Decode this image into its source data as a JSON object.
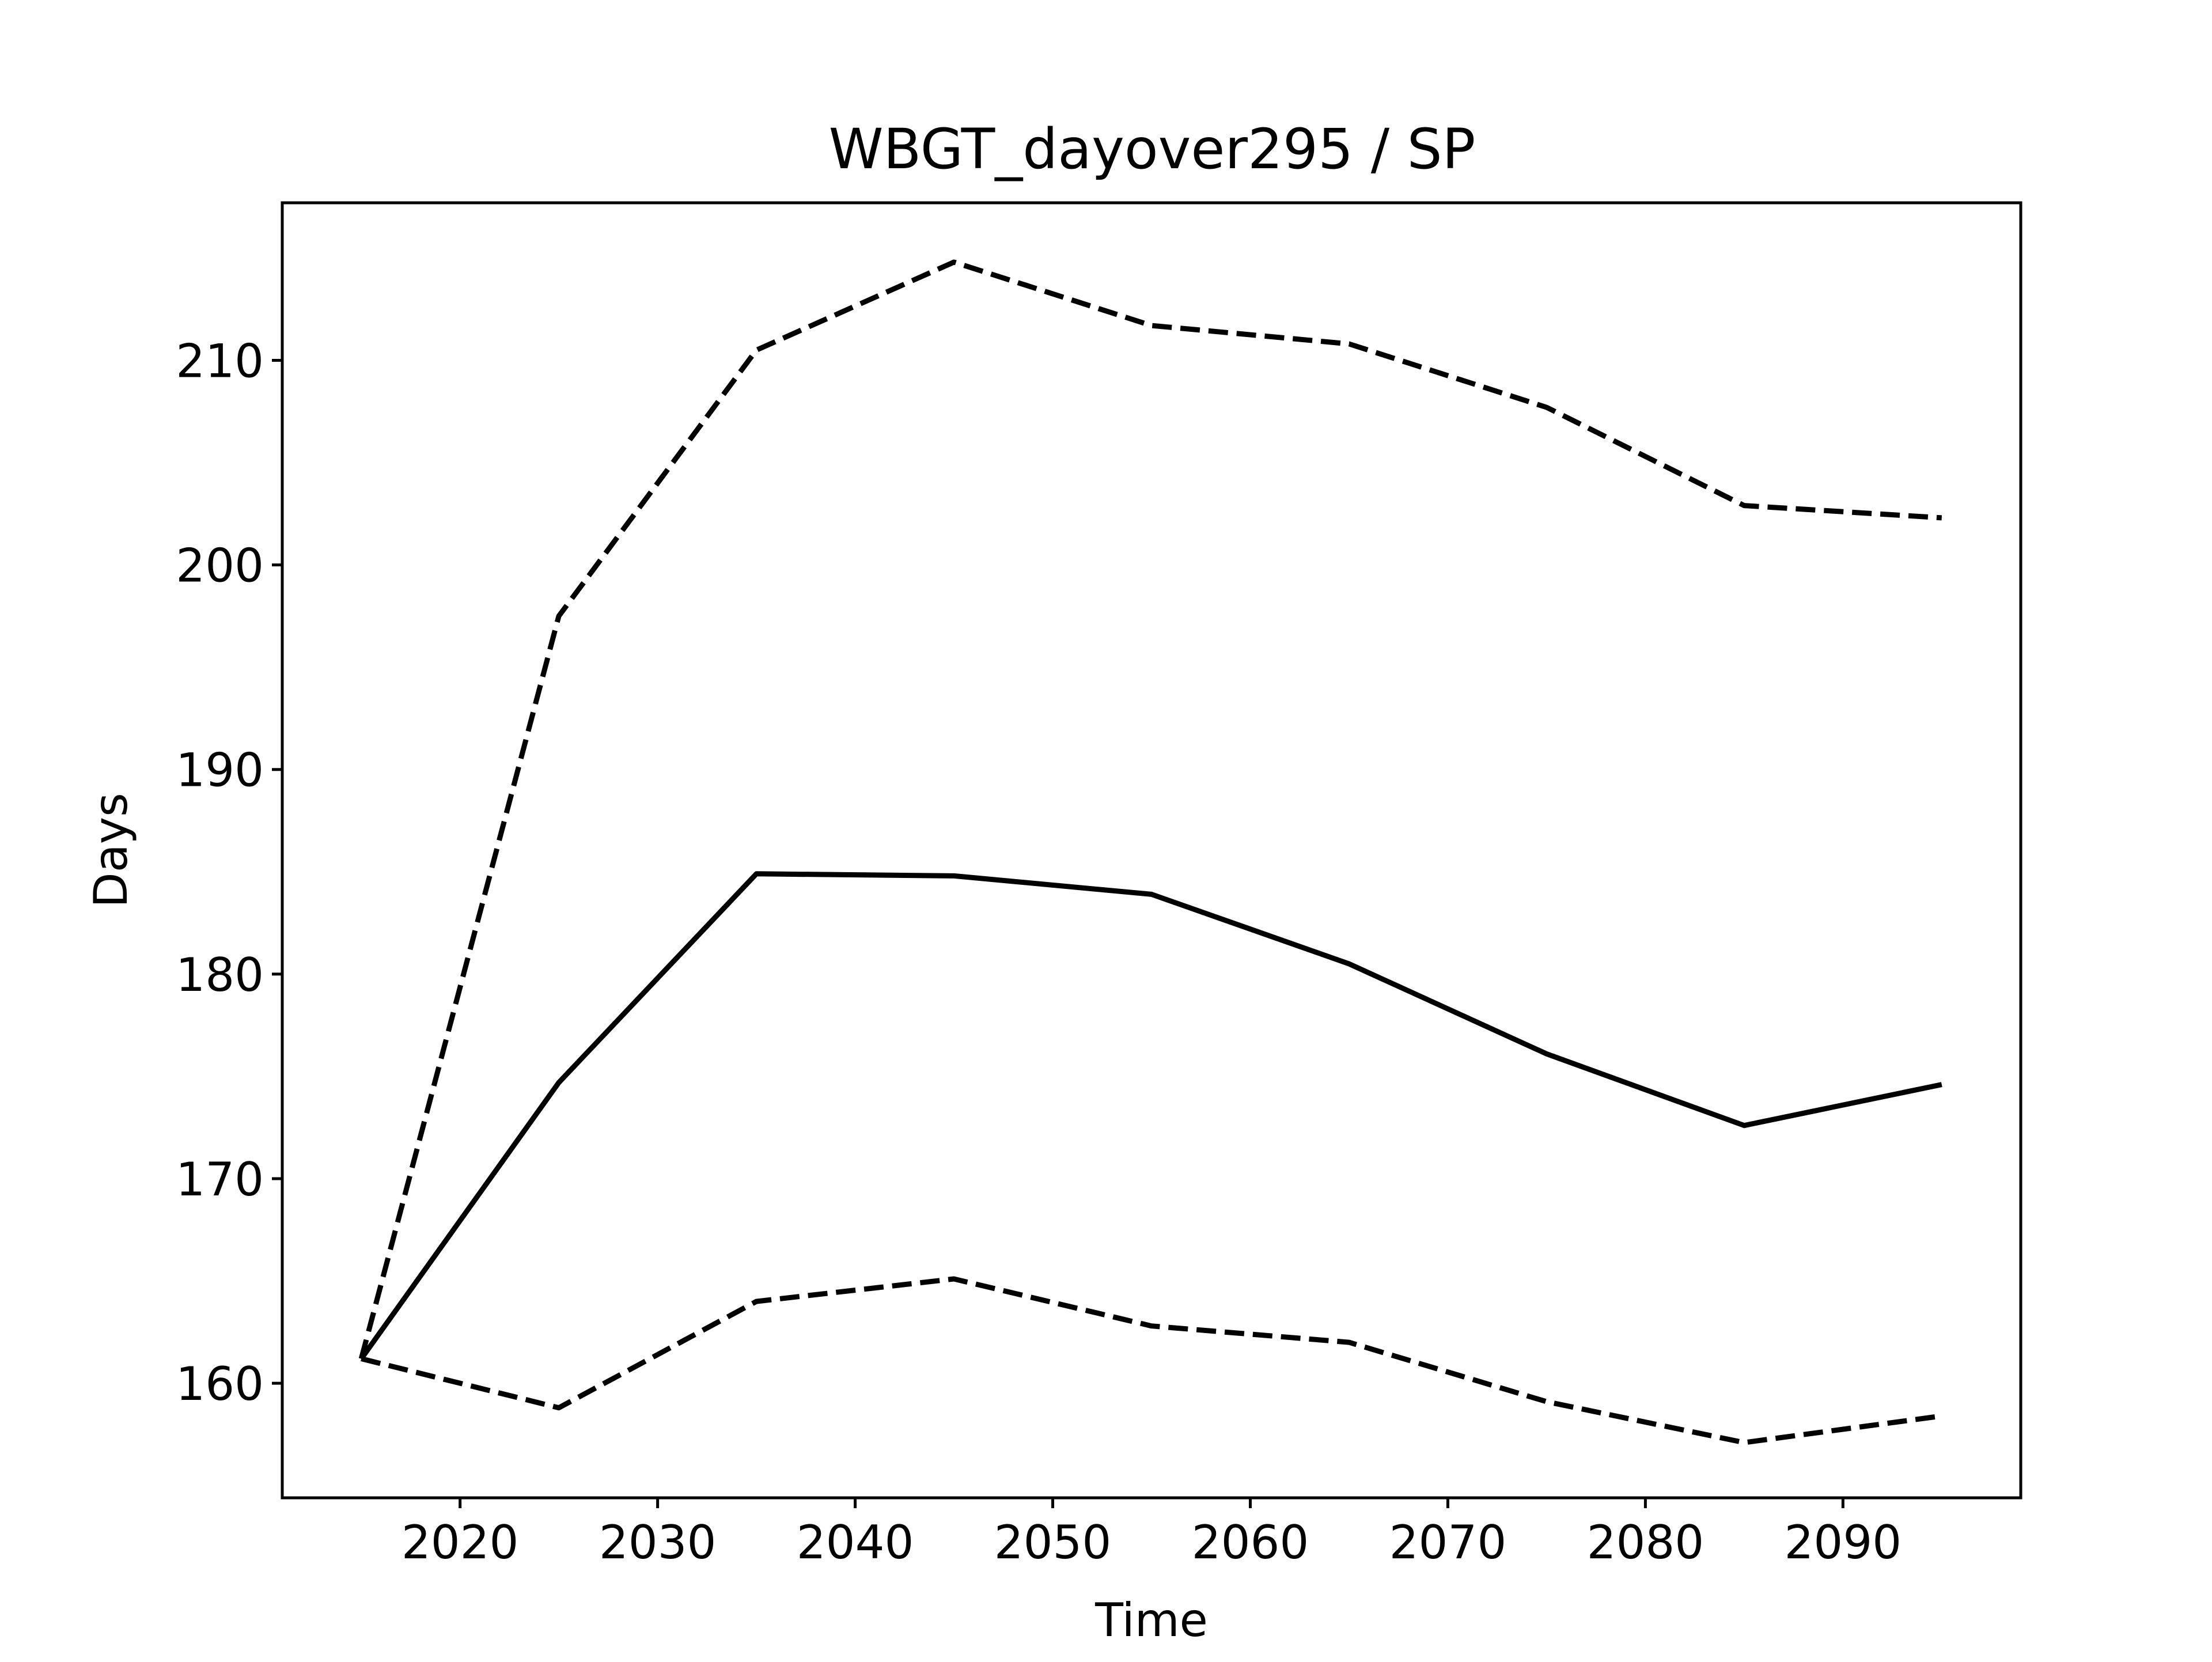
{
  "chart_data": {
    "type": "line",
    "title": "WBGT_dayover295 / SP",
    "xlabel": "Time",
    "ylabel": "Days",
    "xlim": [
      2011,
      2099
    ],
    "ylim": [
      154.4,
      217.7
    ],
    "xticks": [
      2020,
      2030,
      2040,
      2050,
      2060,
      2070,
      2080,
      2090
    ],
    "yticks": [
      160,
      170,
      180,
      190,
      200,
      210
    ],
    "grid": false,
    "legend": "none",
    "x": [
      2015,
      2025,
      2035,
      2045,
      2055,
      2065,
      2075,
      2085,
      2095
    ],
    "series": [
      {
        "style": "solid",
        "color": "#000000",
        "values": [
          161.2,
          174.7,
          184.9,
          184.8,
          183.9,
          180.5,
          176.1,
          172.6,
          174.6
        ]
      },
      {
        "style": "dashed",
        "color": "#000000",
        "values": [
          161.2,
          197.5,
          210.5,
          214.8,
          211.7,
          210.8,
          207.7,
          202.9,
          202.3
        ]
      },
      {
        "style": "dashed",
        "color": "#000000",
        "values": [
          161.2,
          158.8,
          164.0,
          165.1,
          162.8,
          162.0,
          159.1,
          157.1,
          158.4
        ]
      }
    ]
  }
}
